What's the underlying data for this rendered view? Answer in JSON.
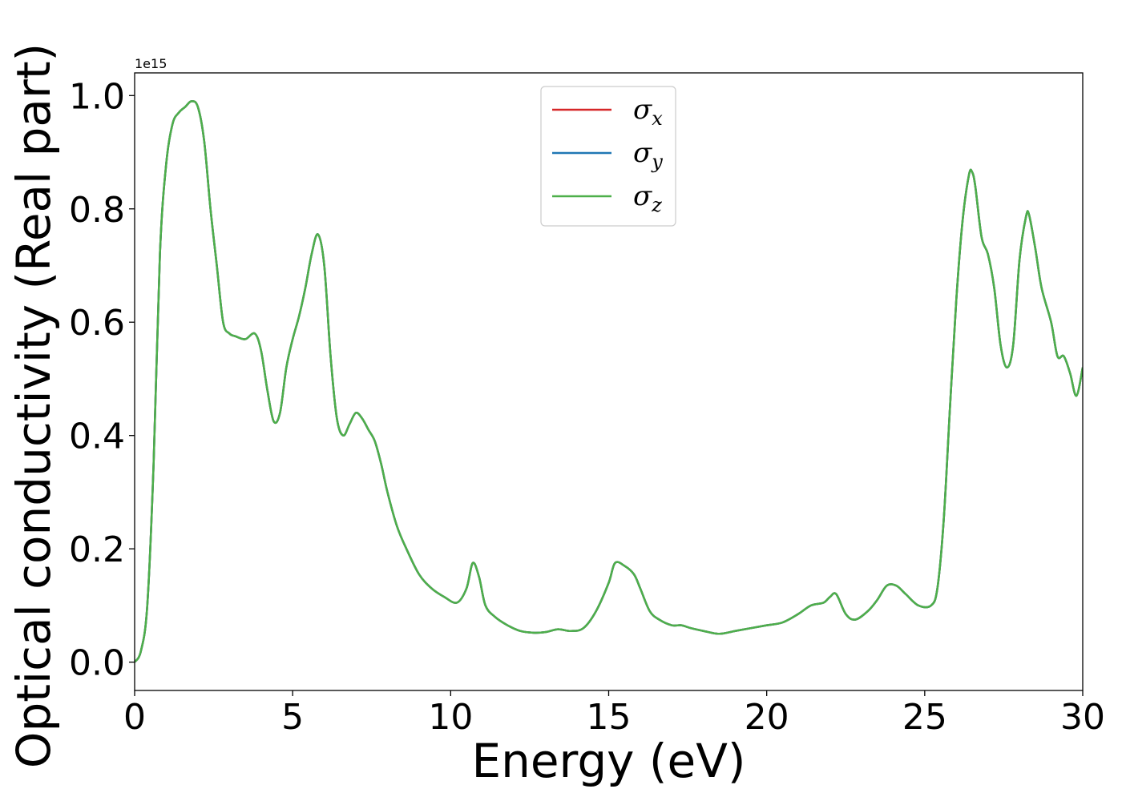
{
  "chart_data": {
    "type": "line",
    "title": "",
    "xlabel": "Energy (eV)",
    "ylabel": "Optical conductivity (Real part)",
    "y_scale_label": "1e15",
    "xlim": [
      0,
      30
    ],
    "ylim": [
      -0.05,
      1.04
    ],
    "x_ticks": [
      0,
      5,
      10,
      15,
      20,
      25,
      30
    ],
    "x_tick_labels": [
      "0",
      "5",
      "10",
      "15",
      "20",
      "25",
      "30"
    ],
    "y_ticks": [
      0.0,
      0.2,
      0.4,
      0.6,
      0.8,
      1.0
    ],
    "y_tick_labels": [
      "0.0",
      "0.2",
      "0.4",
      "0.6",
      "0.8",
      "1.0"
    ],
    "grid": false,
    "legend_position": "top-center",
    "x": [
      0.0,
      0.2,
      0.4,
      0.6,
      0.8,
      1.0,
      1.2,
      1.4,
      1.6,
      1.8,
      2.0,
      2.2,
      2.4,
      2.6,
      2.8,
      3.0,
      3.2,
      3.5,
      3.8,
      4.0,
      4.2,
      4.4,
      4.6,
      4.8,
      5.0,
      5.2,
      5.4,
      5.6,
      5.8,
      6.0,
      6.2,
      6.4,
      6.6,
      6.8,
      7.0,
      7.2,
      7.4,
      7.6,
      7.8,
      8.0,
      8.3,
      8.6,
      9.0,
      9.4,
      9.8,
      10.2,
      10.5,
      10.7,
      10.9,
      11.1,
      11.4,
      11.8,
      12.2,
      12.6,
      13.0,
      13.4,
      13.8,
      14.2,
      14.6,
      15.0,
      15.2,
      15.5,
      15.8,
      16.0,
      16.3,
      16.6,
      17.0,
      17.3,
      17.6,
      18.0,
      18.5,
      19.0,
      19.5,
      20.0,
      20.5,
      21.0,
      21.4,
      21.8,
      22.0,
      22.2,
      22.5,
      22.8,
      23.2,
      23.5,
      23.8,
      24.1,
      24.4,
      24.8,
      25.2,
      25.4,
      25.6,
      25.8,
      26.0,
      26.2,
      26.4,
      26.5,
      26.6,
      26.8,
      27.0,
      27.2,
      27.4,
      27.6,
      27.8,
      28.0,
      28.2,
      28.3,
      28.5,
      28.7,
      29.0,
      29.2,
      29.4,
      29.6,
      29.8,
      30.0
    ],
    "series": [
      {
        "name": "σx",
        "color": "#d62728",
        "values": [
          0.0,
          0.02,
          0.1,
          0.35,
          0.72,
          0.88,
          0.95,
          0.97,
          0.98,
          0.99,
          0.98,
          0.92,
          0.8,
          0.7,
          0.6,
          0.58,
          0.575,
          0.57,
          0.58,
          0.55,
          0.48,
          0.425,
          0.44,
          0.52,
          0.57,
          0.61,
          0.66,
          0.72,
          0.755,
          0.7,
          0.54,
          0.43,
          0.4,
          0.42,
          0.44,
          0.43,
          0.41,
          0.39,
          0.35,
          0.3,
          0.24,
          0.2,
          0.155,
          0.13,
          0.115,
          0.105,
          0.13,
          0.175,
          0.15,
          0.1,
          0.08,
          0.065,
          0.055,
          0.052,
          0.053,
          0.058,
          0.055,
          0.06,
          0.09,
          0.14,
          0.175,
          0.17,
          0.155,
          0.13,
          0.09,
          0.075,
          0.065,
          0.065,
          0.06,
          0.055,
          0.05,
          0.055,
          0.06,
          0.065,
          0.07,
          0.085,
          0.1,
          0.105,
          0.115,
          0.12,
          0.085,
          0.075,
          0.09,
          0.11,
          0.135,
          0.135,
          0.12,
          0.1,
          0.1,
          0.13,
          0.25,
          0.45,
          0.64,
          0.78,
          0.86,
          0.865,
          0.84,
          0.75,
          0.72,
          0.66,
          0.56,
          0.52,
          0.56,
          0.71,
          0.785,
          0.79,
          0.73,
          0.66,
          0.6,
          0.54,
          0.54,
          0.51,
          0.47,
          0.52
        ],
        "line_width": 2.5
      },
      {
        "name": "σy",
        "color": "#1f77b4",
        "values": [
          0.0,
          0.02,
          0.1,
          0.35,
          0.72,
          0.88,
          0.95,
          0.97,
          0.98,
          0.99,
          0.98,
          0.92,
          0.8,
          0.7,
          0.6,
          0.58,
          0.575,
          0.57,
          0.58,
          0.55,
          0.48,
          0.425,
          0.44,
          0.52,
          0.57,
          0.61,
          0.66,
          0.72,
          0.755,
          0.7,
          0.54,
          0.43,
          0.4,
          0.42,
          0.44,
          0.43,
          0.41,
          0.39,
          0.35,
          0.3,
          0.24,
          0.2,
          0.155,
          0.13,
          0.115,
          0.105,
          0.13,
          0.175,
          0.15,
          0.1,
          0.08,
          0.065,
          0.055,
          0.052,
          0.053,
          0.058,
          0.055,
          0.06,
          0.09,
          0.14,
          0.175,
          0.17,
          0.155,
          0.13,
          0.09,
          0.075,
          0.065,
          0.065,
          0.06,
          0.055,
          0.05,
          0.055,
          0.06,
          0.065,
          0.07,
          0.085,
          0.1,
          0.105,
          0.115,
          0.12,
          0.085,
          0.075,
          0.09,
          0.11,
          0.135,
          0.135,
          0.12,
          0.1,
          0.1,
          0.13,
          0.25,
          0.45,
          0.64,
          0.78,
          0.86,
          0.865,
          0.84,
          0.75,
          0.72,
          0.66,
          0.56,
          0.52,
          0.56,
          0.71,
          0.785,
          0.79,
          0.73,
          0.66,
          0.6,
          0.54,
          0.54,
          0.51,
          0.47,
          0.52
        ],
        "line_width": 2.5
      },
      {
        "name": "σz",
        "color": "#4daf4a",
        "values": [
          0.0,
          0.02,
          0.1,
          0.35,
          0.72,
          0.88,
          0.95,
          0.97,
          0.98,
          0.99,
          0.98,
          0.92,
          0.8,
          0.7,
          0.6,
          0.58,
          0.575,
          0.57,
          0.58,
          0.55,
          0.48,
          0.425,
          0.44,
          0.52,
          0.57,
          0.61,
          0.66,
          0.72,
          0.755,
          0.7,
          0.54,
          0.43,
          0.4,
          0.42,
          0.44,
          0.43,
          0.41,
          0.39,
          0.35,
          0.3,
          0.24,
          0.2,
          0.155,
          0.13,
          0.115,
          0.105,
          0.13,
          0.175,
          0.15,
          0.1,
          0.08,
          0.065,
          0.055,
          0.052,
          0.053,
          0.058,
          0.055,
          0.06,
          0.09,
          0.14,
          0.175,
          0.17,
          0.155,
          0.13,
          0.09,
          0.075,
          0.065,
          0.065,
          0.06,
          0.055,
          0.05,
          0.055,
          0.06,
          0.065,
          0.07,
          0.085,
          0.1,
          0.105,
          0.115,
          0.12,
          0.085,
          0.075,
          0.09,
          0.11,
          0.135,
          0.135,
          0.12,
          0.1,
          0.1,
          0.13,
          0.25,
          0.45,
          0.64,
          0.78,
          0.86,
          0.865,
          0.84,
          0.75,
          0.72,
          0.66,
          0.56,
          0.52,
          0.56,
          0.71,
          0.785,
          0.79,
          0.73,
          0.66,
          0.6,
          0.54,
          0.54,
          0.51,
          0.47,
          0.52
        ],
        "line_width": 2.5
      }
    ],
    "legend": {
      "entries": [
        {
          "symbol": "σ",
          "subscript": "x",
          "color": "#d62728"
        },
        {
          "symbol": "σ",
          "subscript": "y",
          "color": "#1f77b4"
        },
        {
          "symbol": "σ",
          "subscript": "z",
          "color": "#4daf4a"
        }
      ]
    }
  }
}
